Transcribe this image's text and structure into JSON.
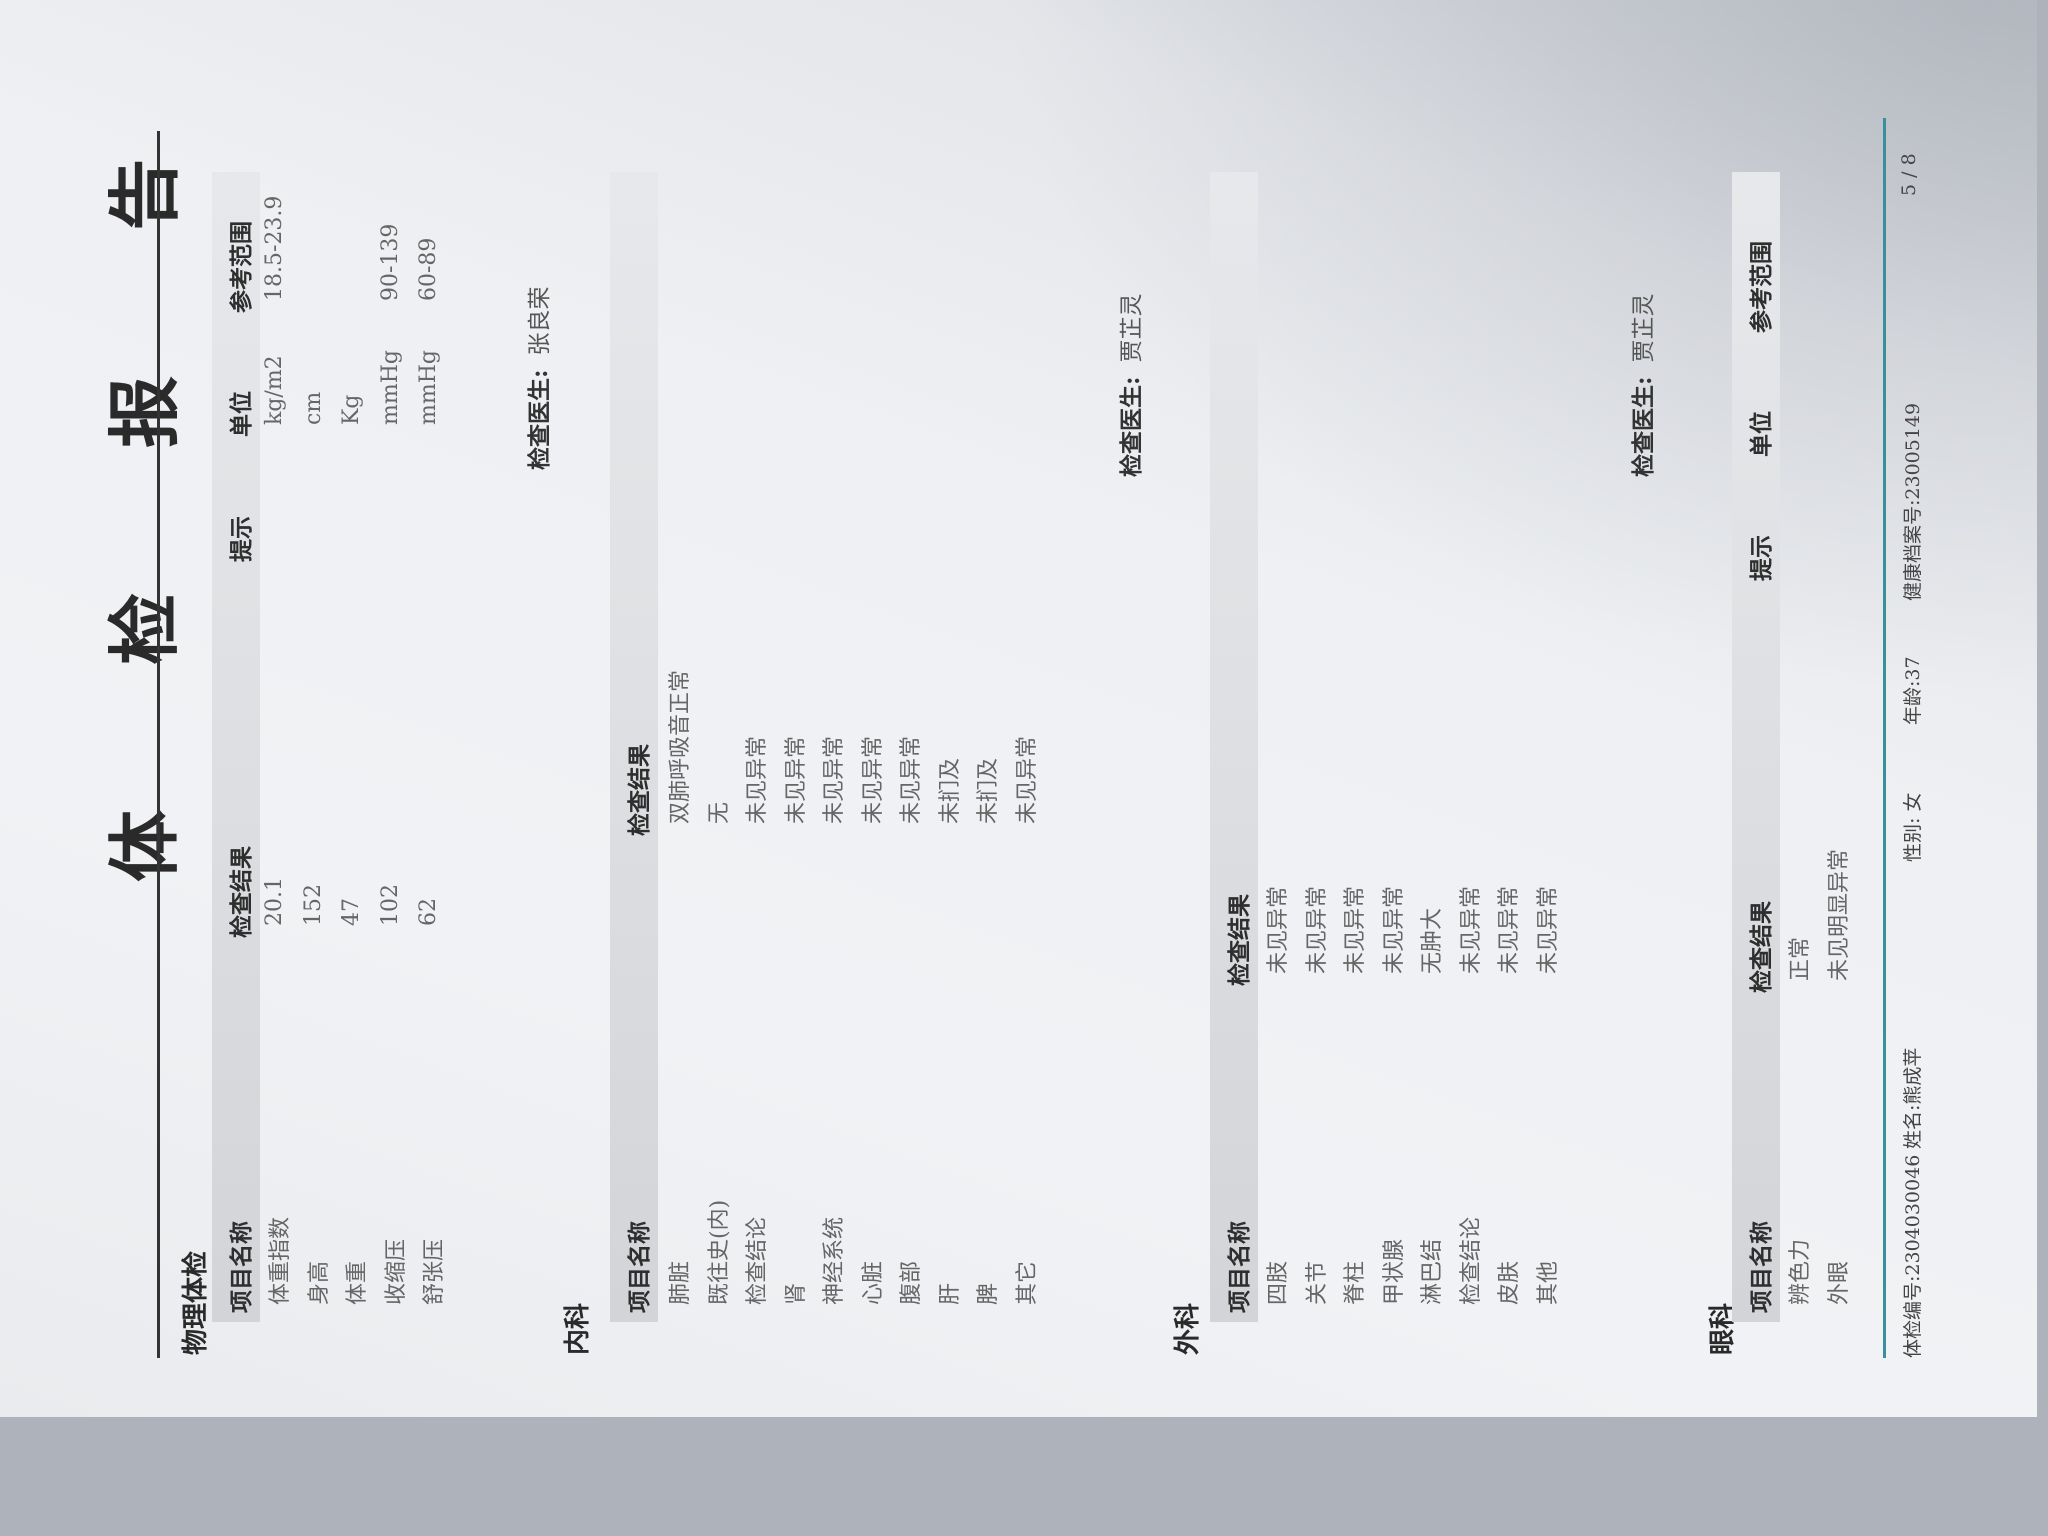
{
  "title": "体 检 报 告",
  "sections": [
    {
      "name": "物理体检",
      "headers": [
        "项目名称",
        "检查结果",
        "提示",
        "单位",
        "参考范围"
      ],
      "rows": [
        [
          "体重指数",
          "20.1",
          "",
          "kg/m2",
          "18.5-23.9"
        ],
        [
          "身高",
          "152",
          "",
          "cm",
          ""
        ],
        [
          "体重",
          "47",
          "",
          "Kg",
          ""
        ],
        [
          "收缩压",
          "102",
          "",
          "mmHg",
          "90-139"
        ],
        [
          "舒张压",
          "62",
          "",
          "mmHg",
          "60-89"
        ]
      ],
      "doctor_label": "检查医生:",
      "doctor": "张良荣"
    },
    {
      "name": "内科",
      "headers": [
        "项目名称",
        "检查结果"
      ],
      "rows": [
        [
          "肺脏",
          "双肺呼吸音正常"
        ],
        [
          "既往史(内)",
          "无"
        ],
        [
          "检查结论",
          "未见异常"
        ],
        [
          "肾",
          "未见异常"
        ],
        [
          "神经系统",
          "未见异常"
        ],
        [
          "心脏",
          "未见异常"
        ],
        [
          "腹部",
          "未见异常"
        ],
        [
          "肝",
          "未扪及"
        ],
        [
          "脾",
          "未扪及"
        ],
        [
          "其它",
          "未见异常"
        ]
      ],
      "doctor_label": "检查医生:",
      "doctor": "贾芷灵"
    },
    {
      "name": "外科",
      "headers": [
        "项目名称",
        "检查结果"
      ],
      "rows": [
        [
          "四肢",
          "未见异常"
        ],
        [
          "关节",
          "未见异常"
        ],
        [
          "脊柱",
          "未见异常"
        ],
        [
          "甲状腺",
          "未见异常"
        ],
        [
          "淋巴结",
          "无肿大"
        ],
        [
          "检查结论",
          "未见异常"
        ],
        [
          "皮肤",
          "未见异常"
        ],
        [
          "其他",
          "未见异常"
        ]
      ],
      "doctor_label": "检查医生:",
      "doctor": "贾芷灵"
    },
    {
      "name": "眼科",
      "headers": [
        "项目名称",
        "检查结果",
        "提示",
        "单位",
        "参考范围"
      ],
      "rows": [
        [
          "辨色力",
          "正常",
          "",
          "",
          ""
        ],
        [
          "外眼",
          "未见明显异常",
          "",
          "",
          ""
        ]
      ]
    }
  ],
  "footer": {
    "exam_no": "体检编号:2304030046",
    "name": "姓名:熊成苹",
    "gender": "性别: 女",
    "age": "年龄:37",
    "record_no": "健康档案号:23005149",
    "page": "5 / 8"
  },
  "colors": {
    "footer_rule": "#3a8f9c",
    "header_bar": "#d2d4d8"
  }
}
